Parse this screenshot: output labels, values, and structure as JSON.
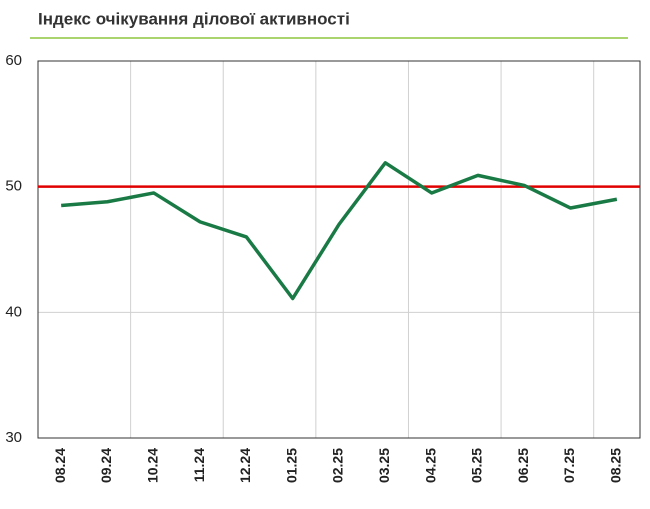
{
  "chart_data": {
    "type": "line",
    "title": "Індекс очікування ділової активності",
    "categories": [
      "08.24",
      "09.24",
      "10.24",
      "11.24",
      "12.24",
      "01.25",
      "02.25",
      "03.25",
      "04.25",
      "05.25",
      "06.25",
      "07.25",
      "08.25"
    ],
    "series": [
      {
        "color": "#1a7a45",
        "values": [
          48.5,
          48.8,
          49.5,
          47.2,
          46.0,
          41.1,
          47.0,
          51.9,
          49.5,
          50.9,
          50.1,
          48.3,
          49.0
        ]
      }
    ],
    "reference_line": {
      "value": 50,
      "color": "#e00000"
    },
    "ylim": [
      30,
      60
    ],
    "yticks": [
      30,
      40,
      50,
      60
    ],
    "grid": true
  }
}
